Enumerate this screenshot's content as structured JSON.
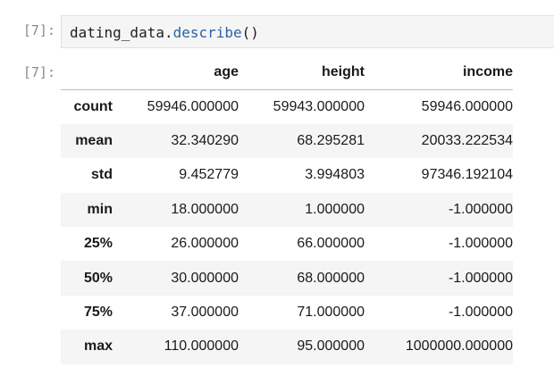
{
  "cell": {
    "input_prompt": "[7]:",
    "output_prompt": "[7]:",
    "code_object": "dating_data.",
    "code_method": "describe",
    "code_parens": "()"
  },
  "table": {
    "columns": [
      "age",
      "height",
      "income"
    ],
    "rows": [
      {
        "label": "count",
        "values": [
          "59946.000000",
          "59943.000000",
          "59946.000000"
        ]
      },
      {
        "label": "mean",
        "values": [
          "32.340290",
          "68.295281",
          "20033.222534"
        ]
      },
      {
        "label": "std",
        "values": [
          "9.452779",
          "3.994803",
          "97346.192104"
        ]
      },
      {
        "label": "min",
        "values": [
          "18.000000",
          "1.000000",
          "-1.000000"
        ]
      },
      {
        "label": "25%",
        "values": [
          "26.000000",
          "66.000000",
          "-1.000000"
        ]
      },
      {
        "label": "50%",
        "values": [
          "30.000000",
          "68.000000",
          "-1.000000"
        ]
      },
      {
        "label": "75%",
        "values": [
          "37.000000",
          "71.000000",
          "-1.000000"
        ]
      },
      {
        "label": "max",
        "values": [
          "110.000000",
          "95.000000",
          "1000000.000000"
        ]
      }
    ]
  },
  "colors": {
    "method": "#2a62a8",
    "prompt": "#8a8a8a",
    "cell_background": "#f5f5f5"
  }
}
